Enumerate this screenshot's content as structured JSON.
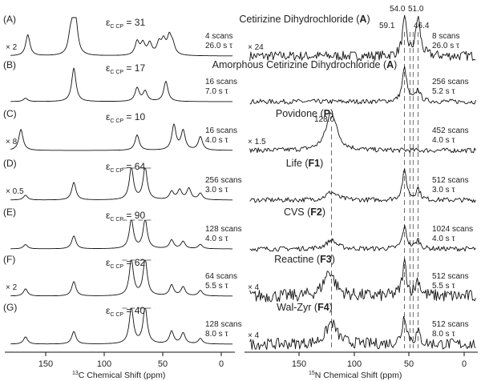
{
  "figure": {
    "axes": {
      "c13": {
        "title_sup": "13",
        "title": "C Chemical Shift (ppm)",
        "ticks": [
          "150",
          "100",
          "50",
          "0"
        ]
      },
      "n15": {
        "title_sup": "15",
        "title": "N Chemical Shift (ppm)",
        "ticks": [
          "150",
          "100",
          "50",
          "0"
        ]
      }
    },
    "eps_symbol": "ε",
    "eps_sub": "C CP",
    "n15_peak_labels": [
      "59.1",
      "54.0",
      "51.0",
      "46.4",
      "128.0"
    ],
    "rows": [
      {
        "label": "(A)",
        "title": "Cetirizine Dihydrochloride (",
        "code": "A",
        "title_end": ")",
        "eps": "= 31",
        "c_scale": "× 2",
        "c_scans": "4 scans",
        "c_tau": "26.0 s τ",
        "n_scale": "× 24",
        "n_scans": "8 scans",
        "n_tau": "26.0 s τ"
      },
      {
        "label": "(B)",
        "title": "Amorphous Cetirizine Dihydrochloride (",
        "code": "A",
        "title_end": ")",
        "eps": "= 17",
        "c_scale": "",
        "c_scans": "16 scans",
        "c_tau": "7.0 s τ",
        "n_scale": "",
        "n_scans": "256 scans",
        "n_tau": "5.2 s τ"
      },
      {
        "label": "(C)",
        "title": "Povidone (",
        "code": "P",
        "title_end": ")",
        "eps": "= 10",
        "c_scale": "× 8",
        "c_scans": "16 scans",
        "c_tau": "4.0 s τ",
        "n_scale": "× 1.5",
        "n_scans": "452 scans",
        "n_tau": "4.0 s τ"
      },
      {
        "label": "(D)",
        "title": "Life (",
        "code": "F1",
        "title_end": ")",
        "eps": "= 64",
        "c_scale": "× 0.5",
        "c_scans": "256 scans",
        "c_tau": "3.0 s τ",
        "n_scale": "",
        "n_scans": "512 scans",
        "n_tau": "3.0 s τ"
      },
      {
        "label": "(E)",
        "title": "CVS (",
        "code": "F2",
        "title_end": ")",
        "eps": "= 90",
        "c_scale": "",
        "c_scans": "128 scans",
        "c_tau": "4.0 s τ",
        "n_scale": "",
        "n_scans": "1024 scans",
        "n_tau": "4.0 s τ"
      },
      {
        "label": "(F)",
        "title": "Reactine (",
        "code": "F3",
        "title_end": ")",
        "eps": "= 62",
        "c_scale": "× 2",
        "c_scans": "64 scans",
        "c_tau": "5.5 s τ",
        "n_scale": "× 4",
        "n_scans": "512 scans",
        "n_tau": "5.5 s τ"
      },
      {
        "label": "(G)",
        "title": "Wal-Zyr (",
        "code": "F4",
        "title_end": ")",
        "eps": "= 40",
        "c_scale": "",
        "c_scans": "128 scans",
        "c_tau": "8.0 s τ",
        "n_scale": "× 4",
        "n_scans": "512 scans",
        "n_tau": "8.0 s τ"
      }
    ]
  },
  "chart_data": {
    "type": "line",
    "c13": {
      "xlim": [
        190,
        -10
      ],
      "x_reversed": true,
      "peaks_ppm": {
        "A": [
          [
            170,
            0.55
          ],
          [
            133,
            0.45
          ],
          [
            130,
            0.8
          ],
          [
            128,
            0.5
          ],
          [
            75,
            0.35
          ],
          [
            70,
            0.3
          ],
          [
            64,
            0.3
          ],
          [
            56,
            0.3
          ],
          [
            52,
            0.35
          ],
          [
            47,
            0.45
          ],
          [
            44,
            0.25
          ]
        ],
        "B": [
          [
            172,
            0.1
          ],
          [
            130,
            1.0
          ],
          [
            75,
            0.4
          ],
          [
            68,
            0.3
          ],
          [
            50,
            0.6
          ]
        ],
        "C": [
          [
            176,
            0.55
          ],
          [
            75,
            0.4
          ],
          [
            43,
            0.65
          ],
          [
            35,
            0.5
          ],
          [
            20,
            0.35
          ]
        ],
        "D": [
          [
            172,
            0.15
          ],
          [
            130,
            0.55
          ],
          [
            80,
            1.0
          ],
          [
            68,
            1.0
          ],
          [
            45,
            0.25
          ],
          [
            38,
            0.3
          ],
          [
            30,
            0.35
          ],
          [
            20,
            0.2
          ]
        ],
        "E": [
          [
            172,
            0.15
          ],
          [
            130,
            0.45
          ],
          [
            80,
            1.0
          ],
          [
            68,
            1.0
          ],
          [
            45,
            0.3
          ],
          [
            35,
            0.25
          ],
          [
            20,
            0.15
          ]
        ],
        "F": [
          [
            172,
            0.2
          ],
          [
            130,
            0.4
          ],
          [
            80,
            1.0
          ],
          [
            68,
            1.0
          ],
          [
            45,
            0.3
          ],
          [
            35,
            0.25
          ],
          [
            20,
            0.15
          ]
        ],
        "G": [
          [
            172,
            0.2
          ],
          [
            130,
            0.35
          ],
          [
            80,
            1.0
          ],
          [
            68,
            1.0
          ],
          [
            45,
            0.35
          ],
          [
            35,
            0.3
          ],
          [
            20,
            0.15
          ]
        ]
      }
    },
    "n15": {
      "xlim": [
        210,
        -10
      ],
      "x_reversed": true,
      "guides_ppm": [
        128.0,
        59.1,
        54.0,
        51.0,
        46.4
      ],
      "peaks_ppm": {
        "A": [
          [
            59.1,
            0.9
          ],
          [
            46.4,
            1.0
          ]
        ],
        "B": [
          [
            59.1,
            1.0
          ],
          [
            46.4,
            0.35
          ]
        ],
        "C": [
          [
            128.0,
            1.0
          ]
        ],
        "D": [
          [
            128.0,
            0.25
          ],
          [
            59.1,
            0.9
          ],
          [
            46.4,
            0.35
          ]
        ],
        "E": [
          [
            128.0,
            0.3
          ],
          [
            59.1,
            0.75
          ],
          [
            46.4,
            0.3
          ]
        ],
        "F": [
          [
            130.0,
            0.7
          ],
          [
            59.1,
            0.9
          ],
          [
            46.4,
            0.45
          ]
        ],
        "G": [
          [
            128.0,
            0.6
          ],
          [
            59.1,
            0.8
          ],
          [
            46.4,
            0.3
          ]
        ]
      }
    }
  }
}
